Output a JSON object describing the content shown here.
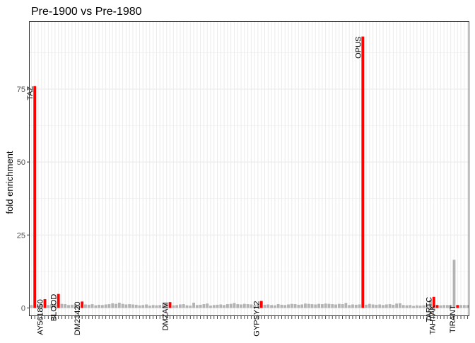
{
  "chart_data": {
    "type": "bar",
    "title": "Pre-1900 vs Pre-1980",
    "xlabel": "",
    "ylabel": "fold enrichment",
    "ylim": [
      -2.8,
      98
    ],
    "yticks": [
      0,
      25,
      50,
      75
    ],
    "grid": true,
    "legend": "none",
    "colors": {
      "highlight": "#ff0000",
      "base": "#b3b3b3",
      "grid": "#ebebeb",
      "panel_border": "#333333",
      "text": "#000000",
      "axis_text": "#4d4d4d"
    },
    "values": [
      1.0,
      76.0,
      0.9,
      1.1,
      3.0,
      1.0,
      1.3,
      1.2,
      4.8,
      1.4,
      1.3,
      1.0,
      1.1,
      1.2,
      1.0,
      2.2,
      1.2,
      1.1,
      1.3,
      0.9,
      1.1,
      1.0,
      1.2,
      1.3,
      1.6,
      1.4,
      1.8,
      1.4,
      1.2,
      1.3,
      1.2,
      1.1,
      0.9,
      1.0,
      1.2,
      0.8,
      1.0,
      0.9,
      1.0,
      1.3,
      1.5,
      2.0,
      0.9,
      1.0,
      1.2,
      1.3,
      0.9,
      0.8,
      1.8,
      1.0,
      1.1,
      1.3,
      1.5,
      0.8,
      1.0,
      1.1,
      1.2,
      1.0,
      1.3,
      1.4,
      1.7,
      1.3,
      1.2,
      1.4,
      1.3,
      1.2,
      1.0,
      1.3,
      2.4,
      1.1,
      1.2,
      1.0,
      0.9,
      1.3,
      1.1,
      1.0,
      1.2,
      1.4,
      1.3,
      1.1,
      1.2,
      1.5,
      1.4,
      1.3,
      1.2,
      1.4,
      1.3,
      1.5,
      1.4,
      1.3,
      1.2,
      1.4,
      1.3,
      1.7,
      1.0,
      1.2,
      1.1,
      1.2,
      93.0,
      1.1,
      1.4,
      1.2,
      1.1,
      1.2,
      1.0,
      1.2,
      1.3,
      1.1,
      1.5,
      1.6,
      1.0,
      0.9,
      1.0,
      0.7,
      0.9,
      0.8,
      0.9,
      1.0,
      2.8,
      3.8,
      1.0,
      0.9,
      1.0,
      1.0,
      1.0,
      16.5,
      1.0,
      1.0,
      1.0,
      1.0
    ],
    "highlighted_bars": [
      {
        "index": 1,
        "label": "TAZ"
      },
      {
        "index": 4,
        "label": "AY561850"
      },
      {
        "index": 8,
        "label": "BLOOD"
      },
      {
        "index": 15,
        "label": "DM23420"
      },
      {
        "index": 41,
        "label": "DMZAM"
      },
      {
        "index": 68,
        "label": "GYPSY12"
      },
      {
        "index": 98,
        "label": "OPUS"
      },
      {
        "index": 119,
        "label": "TARTC"
      },
      {
        "index": 120,
        "label": "TAHTAK"
      },
      {
        "index": 126,
        "label": "TIRANT"
      }
    ]
  }
}
